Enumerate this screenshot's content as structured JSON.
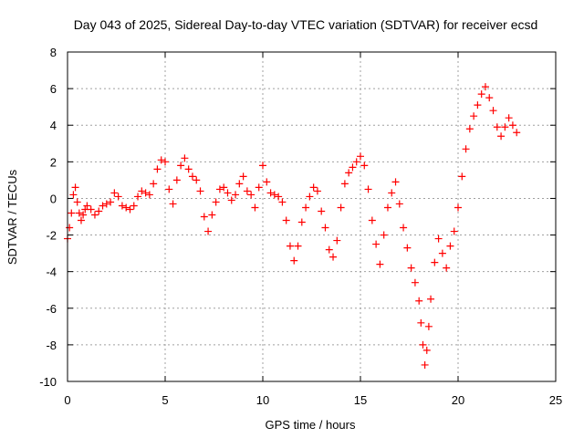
{
  "chart_data": {
    "type": "scatter",
    "title": "Day 043 of 2025, Sidereal Day-to-day VTEC variation (SDTVAR) for receiver ecsd",
    "xlabel": "GPS time / hours",
    "ylabel": "SDTVAR / TECUs",
    "xlim": [
      0,
      25
    ],
    "ylim": [
      -10,
      8
    ],
    "xticks": [
      0,
      5,
      10,
      15,
      20,
      25
    ],
    "yticks": [
      -10,
      -8,
      -6,
      -4,
      -2,
      0,
      2,
      4,
      6,
      8
    ],
    "grid": true,
    "marker": "+",
    "series_color": "#ff0000",
    "series": [
      {
        "name": "SDTVAR",
        "x": [
          0.0,
          0.1,
          0.2,
          0.3,
          0.4,
          0.5,
          0.6,
          0.7,
          0.8,
          0.9,
          1.0,
          1.2,
          1.4,
          1.6,
          1.8,
          2.0,
          2.2,
          2.4,
          2.6,
          2.8,
          3.0,
          3.2,
          3.4,
          3.6,
          3.8,
          4.0,
          4.2,
          4.4,
          4.6,
          4.8,
          5.0,
          5.2,
          5.4,
          5.6,
          5.8,
          6.0,
          6.2,
          6.4,
          6.6,
          6.8,
          7.0,
          7.2,
          7.4,
          7.6,
          7.8,
          8.0,
          8.2,
          8.4,
          8.6,
          8.8,
          9.0,
          9.2,
          9.4,
          9.6,
          9.8,
          10.0,
          10.2,
          10.4,
          10.6,
          10.8,
          11.0,
          11.2,
          11.4,
          11.6,
          11.8,
          12.0,
          12.2,
          12.4,
          12.6,
          12.8,
          13.0,
          13.2,
          13.4,
          13.6,
          13.8,
          14.0,
          14.2,
          14.4,
          14.6,
          14.8,
          15.0,
          15.2,
          15.4,
          15.6,
          15.8,
          16.0,
          16.2,
          16.4,
          16.6,
          16.8,
          17.0,
          17.2,
          17.4,
          17.6,
          17.8,
          18.0,
          18.1,
          18.2,
          18.3,
          18.4,
          18.5,
          18.6,
          18.8,
          19.0,
          19.2,
          19.4,
          19.6,
          19.8,
          20.0,
          20.2,
          20.4,
          20.6,
          20.8,
          21.0,
          21.2,
          21.4,
          21.6,
          21.8,
          22.0,
          22.2,
          22.4,
          22.6,
          22.8,
          23.0
        ],
        "y": [
          -2.2,
          -1.6,
          -0.8,
          0.2,
          0.6,
          -0.2,
          -0.8,
          -1.2,
          -0.9,
          -0.6,
          -0.4,
          -0.6,
          -0.9,
          -0.7,
          -0.4,
          -0.3,
          -0.2,
          0.3,
          0.1,
          -0.4,
          -0.5,
          -0.6,
          -0.4,
          0.1,
          0.4,
          0.3,
          0.2,
          0.8,
          1.6,
          2.1,
          2.0,
          0.5,
          -0.3,
          1.0,
          1.8,
          2.2,
          1.6,
          1.2,
          1.0,
          0.4,
          -1.0,
          -1.8,
          -0.9,
          -0.2,
          0.5,
          0.6,
          0.3,
          -0.1,
          0.2,
          0.8,
          1.2,
          0.4,
          0.2,
          -0.5,
          0.6,
          1.8,
          0.9,
          0.3,
          0.2,
          0.1,
          -0.2,
          -1.2,
          -2.6,
          -3.4,
          -2.6,
          -1.3,
          -0.5,
          0.1,
          0.6,
          0.4,
          -0.7,
          -1.6,
          -2.8,
          -3.2,
          -2.3,
          -0.5,
          0.8,
          1.4,
          1.7,
          2.0,
          2.3,
          1.8,
          0.5,
          -1.2,
          -2.5,
          -3.6,
          -2.0,
          -0.5,
          0.3,
          0.9,
          -0.3,
          -1.6,
          -2.7,
          -3.8,
          -4.6,
          -5.6,
          -6.8,
          -8.0,
          -9.1,
          -8.3,
          -7.0,
          -5.5,
          -3.5,
          -2.2,
          -3.0,
          -3.8,
          -2.6,
          -1.8,
          -0.5,
          1.2,
          2.7,
          3.8,
          4.5,
          5.1,
          5.7,
          6.1,
          5.5,
          4.8,
          3.9,
          3.4,
          3.9,
          4.4,
          4.0,
          3.6
        ]
      }
    ]
  }
}
